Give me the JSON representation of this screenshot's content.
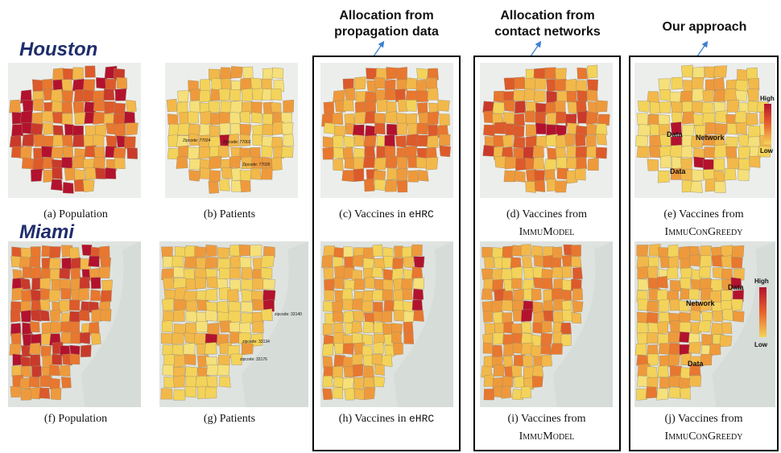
{
  "cities": {
    "top": "Houston",
    "bottom": "Miami"
  },
  "column_headers": [
    {
      "line1": "Allocation from",
      "line2": "propagation data"
    },
    {
      "line1": "Allocation from",
      "line2": "contact networks"
    },
    {
      "line1": "Our approach",
      "line2": ""
    }
  ],
  "captions_top": [
    {
      "prefix": "(a) Population",
      "mono": "",
      "sc": ""
    },
    {
      "prefix": "(b) Patients",
      "mono": "",
      "sc": ""
    },
    {
      "prefix": "(c) Vaccines in ",
      "mono": "eHRC",
      "sc": ""
    },
    {
      "prefix": "(d) Vaccines from",
      "mono": "",
      "sc": "ImmuModel"
    },
    {
      "prefix": "(e) Vaccines from",
      "mono": "",
      "sc": "ImmuConGreedy"
    }
  ],
  "captions_bottom": [
    {
      "prefix": "(f) Population",
      "mono": "",
      "sc": ""
    },
    {
      "prefix": "(g) Patients",
      "mono": "",
      "sc": ""
    },
    {
      "prefix": "(h) Vaccines in ",
      "mono": "eHRC",
      "sc": ""
    },
    {
      "prefix": "(i) Vaccines from",
      "mono": "",
      "sc": "ImmuModel"
    },
    {
      "prefix": "(j) Vaccines from",
      "mono": "",
      "sc": "ImmuConGreedy"
    }
  ],
  "map_annotations": {
    "houston_patients": [
      "Zipcode: 77024",
      "Zipcode: 77002",
      "Zipcode: 77035"
    ],
    "houston_ours": [
      "Data",
      "Network",
      "Data"
    ],
    "miami_patients": [
      "zipcode: 33140",
      "zipcode: 33134",
      "zipcode: 33176"
    ],
    "miami_ours": [
      "Data",
      "Network",
      "Data"
    ]
  },
  "legend": {
    "high": "High",
    "low": "Low"
  },
  "colors": {
    "high": "#b3122e",
    "mid": "#e8622c",
    "low": "#f3d35a",
    "city_label": "#1f2d6b",
    "arrow": "#3b7fd1"
  }
}
